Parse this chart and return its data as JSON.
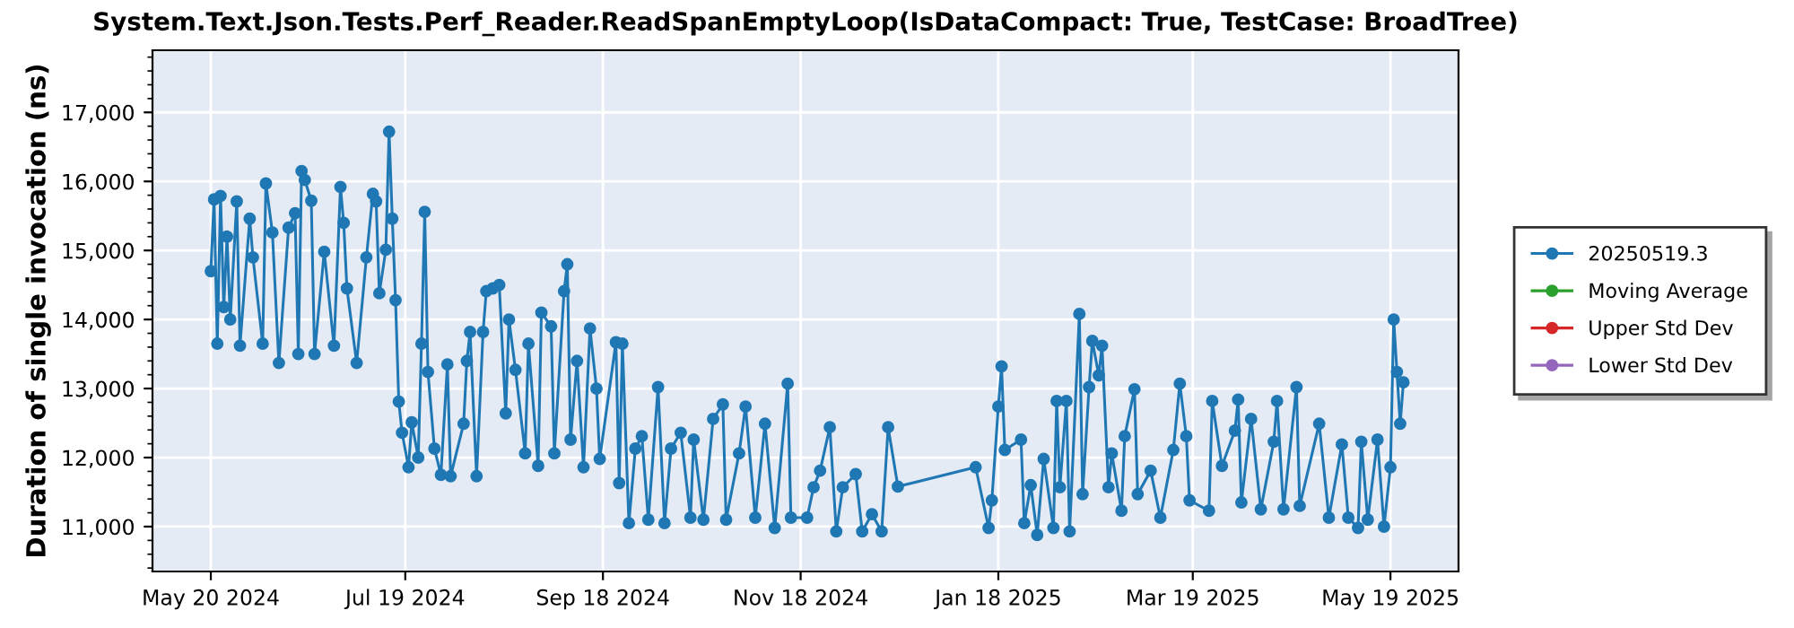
{
  "chart_data": {
    "type": "line",
    "title": "System.Text.Json.Tests.Perf_Reader.ReadSpanEmptyLoop(IsDataCompact: True, TestCase: BroadTree)",
    "ylabel": "Duration of single invocation (ns)",
    "xlim": [
      "2024-05-02",
      "2025-06-09"
    ],
    "xticks": [
      {
        "value": "2024-05-20",
        "label": "May 20 2024"
      },
      {
        "value": "2024-07-19",
        "label": "Jul 19 2024"
      },
      {
        "value": "2024-09-18",
        "label": "Sep 18 2024"
      },
      {
        "value": "2024-11-18",
        "label": "Nov 18 2024"
      },
      {
        "value": "2025-01-18",
        "label": "Jan 18 2025"
      },
      {
        "value": "2025-03-19",
        "label": "Mar 19 2025"
      },
      {
        "value": "2025-05-19",
        "label": "May 19 2025"
      }
    ],
    "ylim": [
      10350,
      17900
    ],
    "yticks": [
      {
        "value": 11000,
        "label": "11,000"
      },
      {
        "value": 12000,
        "label": "12,000"
      },
      {
        "value": 13000,
        "label": "13,000"
      },
      {
        "value": 14000,
        "label": "14,000"
      },
      {
        "value": 15000,
        "label": "15,000"
      },
      {
        "value": 16000,
        "label": "16,000"
      },
      {
        "value": 17000,
        "label": "17,000"
      }
    ],
    "grid": true,
    "legend": "right",
    "marker": "circle",
    "line_style": "solid",
    "series": [
      {
        "name": "20250519.3",
        "color": "#1f77b4",
        "x": [
          "2024-05-20",
          "2024-05-21",
          "2024-05-22",
          "2024-05-23",
          "2024-05-24",
          "2024-05-25",
          "2024-05-26",
          "2024-05-28",
          "2024-05-29",
          "2024-06-01",
          "2024-06-02",
          "2024-06-05",
          "2024-06-06",
          "2024-06-08",
          "2024-06-10",
          "2024-06-13",
          "2024-06-15",
          "2024-06-16",
          "2024-06-17",
          "2024-06-18",
          "2024-06-20",
          "2024-06-21",
          "2024-06-24",
          "2024-06-27",
          "2024-06-29",
          "2024-06-30",
          "2024-07-01",
          "2024-07-04",
          "2024-07-07",
          "2024-07-09",
          "2024-07-10",
          "2024-07-11",
          "2024-07-13",
          "2024-07-14",
          "2024-07-15",
          "2024-07-16",
          "2024-07-17",
          "2024-07-18",
          "2024-07-20",
          "2024-07-21",
          "2024-07-23",
          "2024-07-24",
          "2024-07-25",
          "2024-07-26",
          "2024-07-28",
          "2024-07-30",
          "2024-08-01",
          "2024-08-02",
          "2024-08-06",
          "2024-08-07",
          "2024-08-08",
          "2024-08-10",
          "2024-08-12",
          "2024-08-13",
          "2024-08-15",
          "2024-08-17",
          "2024-08-19",
          "2024-08-20",
          "2024-08-22",
          "2024-08-25",
          "2024-08-26",
          "2024-08-29",
          "2024-08-30",
          "2024-09-02",
          "2024-09-03",
          "2024-09-06",
          "2024-09-07",
          "2024-09-08",
          "2024-09-10",
          "2024-09-12",
          "2024-09-14",
          "2024-09-16",
          "2024-09-17",
          "2024-09-22",
          "2024-09-23",
          "2024-09-24",
          "2024-09-26",
          "2024-09-28",
          "2024-09-30",
          "2024-10-02",
          "2024-10-05",
          "2024-10-07",
          "2024-10-09",
          "2024-10-12",
          "2024-10-15",
          "2024-10-16",
          "2024-10-19",
          "2024-10-22",
          "2024-10-25",
          "2024-10-26",
          "2024-10-30",
          "2024-11-01",
          "2024-11-04",
          "2024-11-07",
          "2024-11-10",
          "2024-11-14",
          "2024-11-15",
          "2024-11-20",
          "2024-11-22",
          "2024-11-24",
          "2024-11-27",
          "2024-11-29",
          "2024-12-01",
          "2024-12-05",
          "2024-12-07",
          "2024-12-10",
          "2024-12-13",
          "2024-12-15",
          "2024-12-18",
          "2025-01-11",
          "2025-01-15",
          "2025-01-16",
          "2025-01-18",
          "2025-01-19",
          "2025-01-20",
          "2025-01-25",
          "2025-01-26",
          "2025-01-28",
          "2025-01-30",
          "2025-02-01",
          "2025-02-04",
          "2025-02-05",
          "2025-02-06",
          "2025-02-08",
          "2025-02-09",
          "2025-02-12",
          "2025-02-13",
          "2025-02-15",
          "2025-02-16",
          "2025-02-18",
          "2025-02-19",
          "2025-02-21",
          "2025-02-22",
          "2025-02-25",
          "2025-02-26",
          "2025-03-01",
          "2025-03-02",
          "2025-03-06",
          "2025-03-09",
          "2025-03-13",
          "2025-03-15",
          "2025-03-17",
          "2025-03-18",
          "2025-03-24",
          "2025-03-25",
          "2025-03-28",
          "2025-04-01",
          "2025-04-02",
          "2025-04-03",
          "2025-04-06",
          "2025-04-09",
          "2025-04-13",
          "2025-04-14",
          "2025-04-16",
          "2025-04-20",
          "2025-04-21",
          "2025-04-27",
          "2025-04-30",
          "2025-05-04",
          "2025-05-06",
          "2025-05-09",
          "2025-05-10",
          "2025-05-12",
          "2025-05-15",
          "2025-05-17",
          "2025-05-19",
          "2025-05-20",
          "2025-05-21",
          "2025-05-22",
          "2025-05-23"
        ],
        "values": [
          14700,
          15740,
          13650,
          15790,
          14180,
          15200,
          14000,
          15710,
          13620,
          15460,
          14900,
          13650,
          15970,
          15260,
          13370,
          15330,
          15540,
          13500,
          16150,
          16020,
          15720,
          13500,
          14980,
          13620,
          15920,
          15400,
          14450,
          13370,
          14900,
          15820,
          15710,
          14380,
          15010,
          16720,
          15460,
          14280,
          12810,
          12360,
          11860,
          12510,
          12000,
          13650,
          15560,
          13240,
          12130,
          11750,
          13350,
          11730,
          12490,
          13400,
          13820,
          11730,
          13820,
          14410,
          14450,
          14500,
          12640,
          14000,
          13270,
          12060,
          13650,
          11880,
          14100,
          13900,
          12060,
          14410,
          14800,
          12260,
          13400,
          11860,
          13870,
          13000,
          11980,
          13670,
          11630,
          13650,
          11050,
          12130,
          12310,
          11100,
          13020,
          11050,
          12130,
          12360,
          11130,
          12260,
          11100,
          12560,
          12770,
          11100,
          12060,
          12740,
          11130,
          12490,
          10980,
          13070,
          11130,
          11130,
          11570,
          11810,
          12440,
          10930,
          11570,
          11760,
          10930,
          11180,
          10930,
          12440,
          11580,
          11860,
          10980,
          11380,
          12740,
          13320,
          12110,
          12260,
          11050,
          11600,
          10880,
          11980,
          10980,
          12820,
          11570,
          12820,
          10930,
          14080,
          11470,
          13020,
          13690,
          13190,
          13620,
          11570,
          12060,
          11230,
          12310,
          12990,
          11470,
          11810,
          11130,
          12110,
          13070,
          12310,
          11380,
          11230,
          12820,
          11880,
          12390,
          12840,
          11350,
          12560,
          11250,
          12230,
          12820,
          11250,
          13020,
          11300,
          12490,
          11130,
          12190,
          11130,
          10980,
          12230,
          11100,
          12260,
          11000,
          11860,
          14000,
          13240,
          12490,
          13090
        ]
      },
      {
        "name": "Moving Average",
        "color": "#2ca02c"
      },
      {
        "name": "Upper Std Dev",
        "color": "#d62728"
      },
      {
        "name": "Lower Std Dev",
        "color": "#9467bd"
      }
    ]
  }
}
